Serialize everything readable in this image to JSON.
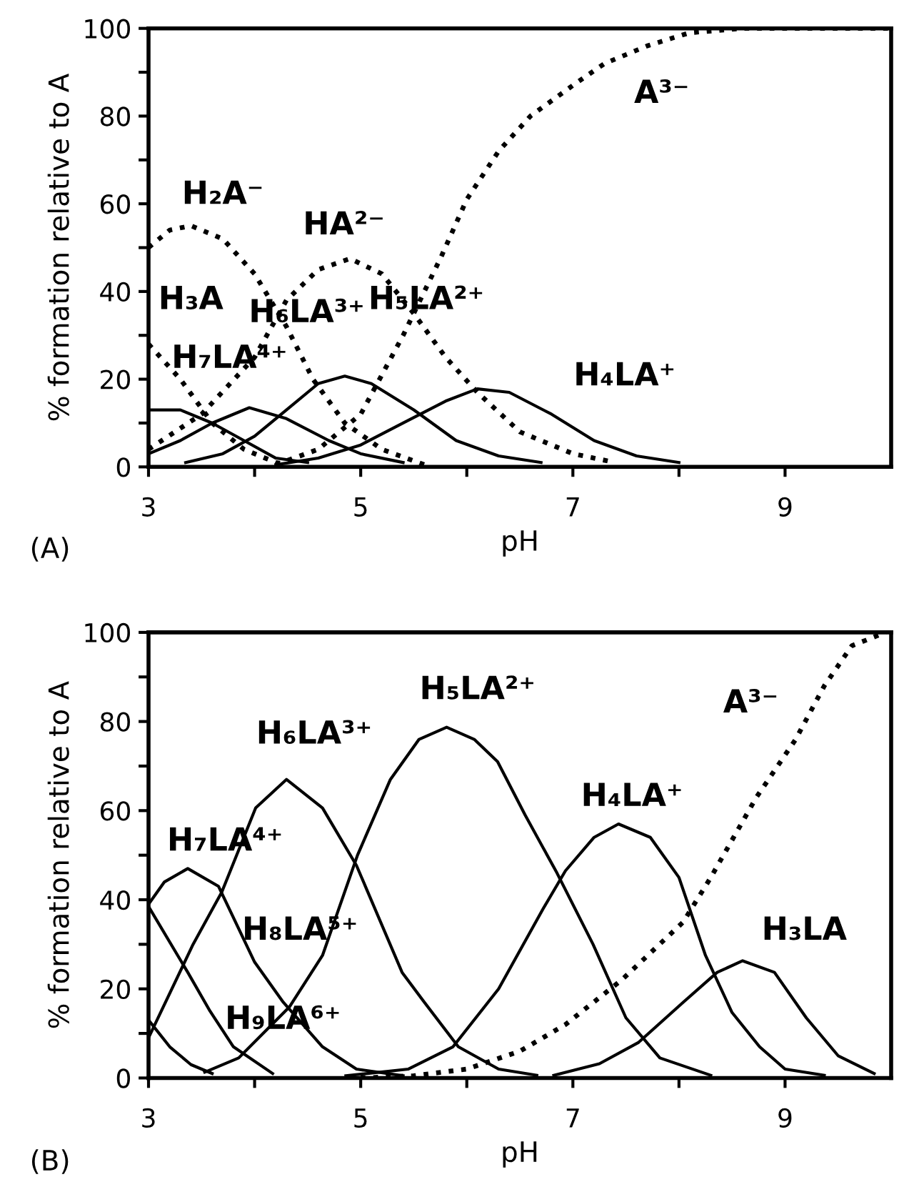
{
  "chart_data": [
    {
      "type": "line",
      "xlabel": "pH",
      "ylabel": "% formation relative to A",
      "xlim": [
        3,
        10
      ],
      "ylim": [
        0,
        100
      ],
      "xticks": [
        3,
        {
          "value": 4,
          "label": null
        },
        5,
        {
          "value": 6,
          "label": null
        },
        7,
        {
          "value": 8,
          "label": null
        },
        9
      ],
      "yticks": [
        0,
        {
          "value": 10,
          "label": null
        },
        20,
        {
          "value": 30,
          "label": null
        },
        40,
        {
          "value": 50,
          "label": null
        },
        60,
        {
          "value": 70,
          "label": null
        },
        80,
        {
          "value": 90,
          "label": null
        },
        100
      ],
      "legend": false,
      "grid": false,
      "marker": "none",
      "series": [
        {
          "type": "line",
          "line_style": "dotted",
          "color": "#000000",
          "x": [
            3,
            3.3,
            3.6,
            3.9,
            4.2,
            4.3
          ],
          "values": [
            28,
            20,
            10,
            4,
            1,
            0.5
          ]
        },
        {
          "type": "line",
          "line_style": "dotted",
          "color": "#000000",
          "x": [
            3,
            3.2,
            3.4,
            3.7,
            4.0,
            4.3,
            4.55,
            4.85,
            5.2,
            5.6
          ],
          "values": [
            50,
            54,
            55,
            52,
            44,
            32,
            20,
            10,
            4,
            0.5
          ]
        },
        {
          "type": "line",
          "line_style": "dotted",
          "color": "#000000",
          "x": [
            3,
            3.5,
            4.0,
            4.3,
            4.6,
            4.9,
            5.2,
            5.5,
            5.8,
            6.1,
            6.5,
            7.0,
            7.4
          ],
          "values": [
            4,
            12,
            25,
            38,
            45,
            47.5,
            44,
            35,
            25,
            17,
            8,
            3,
            1
          ]
        },
        {
          "type": "line",
          "line_style": "dotted",
          "color": "#000000",
          "x": [
            4.2,
            4.6,
            5.0,
            5.4,
            5.76,
            6.0,
            6.3,
            6.6,
            7.0,
            7.3,
            7.7,
            8.1,
            8.6,
            10
          ],
          "values": [
            0.5,
            4,
            12,
            30,
            48,
            61,
            72,
            80,
            87,
            92,
            96,
            99,
            100,
            100
          ]
        },
        {
          "type": "line",
          "line_style": "solid",
          "color": "#000000",
          "x": [
            3,
            3.3,
            3.6,
            3.9,
            4.2,
            4.5
          ],
          "values": [
            13,
            13,
            10,
            6,
            2,
            1
          ]
        },
        {
          "type": "line",
          "line_style": "solid",
          "color": "#000000",
          "x": [
            3,
            3.3,
            3.6,
            3.95,
            4.3,
            4.7,
            5.0,
            5.4
          ],
          "values": [
            3,
            6,
            10,
            13.5,
            11,
            6,
            3,
            1
          ]
        },
        {
          "type": "line",
          "line_style": "solid",
          "color": "#000000",
          "x": [
            3.35,
            3.7,
            4.0,
            4.3,
            4.6,
            4.85,
            5.1,
            5.5,
            5.9,
            6.3,
            6.7
          ],
          "values": [
            1,
            3,
            7,
            13,
            19,
            20.7,
            19,
            13,
            6,
            2.5,
            1
          ]
        },
        {
          "type": "line",
          "line_style": "solid",
          "color": "#000000",
          "x": [
            4.2,
            4.6,
            5.0,
            5.4,
            5.8,
            6.1,
            6.4,
            6.8,
            7.2,
            7.6,
            8.0
          ],
          "values": [
            0.5,
            2,
            5,
            10,
            15,
            17.8,
            17,
            12,
            6,
            2.5,
            1
          ]
        }
      ],
      "annotations": [
        "H₂A⁻",
        "HA²⁻",
        "A³⁻",
        "H₃A",
        "H₆LA³⁺",
        "H₅LA²⁺",
        "H₇LA⁴⁺",
        "H₄LA⁺",
        "(A)"
      ]
    },
    {
      "type": "line",
      "xlabel": "pH",
      "ylabel": "% formation relative to A",
      "xlim": [
        3,
        10
      ],
      "ylim": [
        0,
        100
      ],
      "xticks": [
        3,
        {
          "value": 4,
          "label": null
        },
        5,
        {
          "value": 6,
          "label": null
        },
        7,
        {
          "value": 8,
          "label": null
        },
        9
      ],
      "yticks": [
        0,
        {
          "value": 10,
          "label": null
        },
        20,
        {
          "value": 30,
          "label": null
        },
        40,
        {
          "value": 50,
          "label": null
        },
        60,
        {
          "value": 70,
          "label": null
        },
        80,
        {
          "value": 90,
          "label": null
        },
        100
      ],
      "legend": false,
      "grid": false,
      "marker": "none",
      "series": [
        {
          "type": "line",
          "line_style": "solid",
          "color": "#000000",
          "x": [
            3,
            3.2,
            3.4,
            3.6
          ],
          "values": [
            13,
            7,
            3,
            1
          ]
        },
        {
          "type": "line",
          "line_style": "solid",
          "color": "#000000",
          "x": [
            3,
            3.37,
            3.58,
            3.8,
            4.17
          ],
          "values": [
            38.5,
            23.7,
            15,
            7,
            1
          ]
        },
        {
          "type": "line",
          "line_style": "solid",
          "color": "#000000",
          "x": [
            3,
            3.15,
            3.37,
            3.66,
            4.0,
            4.27,
            4.64,
            4.96,
            5.4
          ],
          "values": [
            39,
            44,
            47,
            43,
            26,
            17,
            7,
            2,
            0.5
          ]
        },
        {
          "type": "line",
          "line_style": "solid",
          "color": "#000000",
          "x": [
            3,
            3.42,
            3.69,
            4.01,
            4.3,
            4.64,
            4.96,
            5.39,
            5.6,
            5.92,
            6.3,
            6.66
          ],
          "values": [
            9,
            30,
            41.7,
            60.6,
            67,
            60.6,
            47.7,
            23.7,
            17,
            7,
            2,
            0.6
          ]
        },
        {
          "type": "line",
          "line_style": "solid",
          "color": "#000000",
          "x": [
            3.53,
            3.85,
            4.33,
            4.64,
            4.97,
            5.28,
            5.55,
            5.81,
            6.07,
            6.29,
            6.55,
            6.85,
            7.19,
            7.5,
            7.82,
            8.3
          ],
          "values": [
            1.3,
            4.5,
            16,
            27.5,
            50,
            67,
            76,
            78.7,
            76,
            71,
            59,
            46,
            30,
            13.5,
            4.5,
            0.6
          ]
        },
        {
          "type": "line",
          "line_style": "solid",
          "color": "#000000",
          "x": [
            4.86,
            5.45,
            5.87,
            6.3,
            6.72,
            6.93,
            7.2,
            7.43,
            7.73,
            8.0,
            8.25,
            8.5,
            8.76,
            9.0,
            9.37
          ],
          "values": [
            0.5,
            2,
            7,
            20,
            38,
            46.5,
            54,
            57,
            54,
            45,
            27.5,
            14.7,
            7,
            2,
            0.6
          ]
        },
        {
          "type": "line",
          "line_style": "solid",
          "color": "#000000",
          "x": [
            6.82,
            7.25,
            7.62,
            8.04,
            8.36,
            8.6,
            8.9,
            9.2,
            9.5,
            9.84
          ],
          "values": [
            0.6,
            3.2,
            8,
            17,
            23.7,
            26.3,
            23.7,
            13.5,
            5,
            1
          ]
        },
        {
          "type": "line",
          "line_style": "dotted",
          "color": "#000000",
          "x": [
            5.0,
            5.5,
            6.0,
            6.5,
            6.93,
            7.46,
            8.04,
            8.3,
            8.73,
            9.1,
            9.37,
            9.63,
            9.95
          ],
          "values": [
            0,
            0.5,
            2,
            6,
            12,
            22,
            35,
            45,
            63,
            76,
            88,
            97,
            100
          ]
        }
      ],
      "annotations": [
        "H₅LA²⁺",
        "H₆LA³⁺",
        "A³⁻",
        "H₄LA⁺",
        "H₇LA⁴⁺",
        "H₈LA⁵⁺",
        "H₉LA⁶⁺",
        "H₃LA",
        "(B)"
      ]
    }
  ]
}
